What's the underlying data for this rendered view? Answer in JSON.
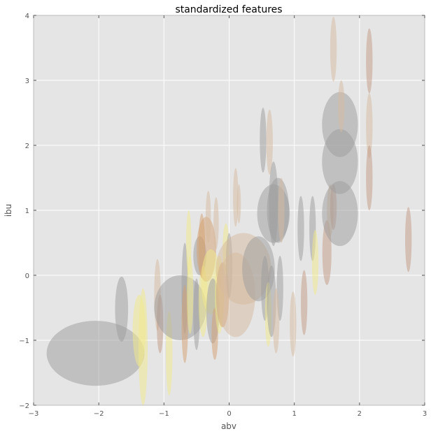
{
  "chart_data": {
    "type": "scatter",
    "title": "standardized features",
    "xlabel": "abv",
    "ylabel": "ibu",
    "xlim": [
      -3,
      3
    ],
    "ylim": [
      -2,
      4
    ],
    "x_ticks": [
      "−3",
      "−2",
      "−1",
      "0",
      "1",
      "2",
      "3"
    ],
    "y_ticks": [
      "−2",
      "−1",
      "0",
      "1",
      "2",
      "3",
      "4"
    ],
    "grid": true,
    "background": "#e5e5e5",
    "ellipse_alpha": 0.5,
    "colors": {
      "gray": "#9c9c9c",
      "tan": "#d6b99e",
      "yellow": "#f1e98a",
      "brown": "#c49a85",
      "orange": "#d4a070"
    },
    "ellipses": [
      {
        "x": -2.05,
        "y": -1.2,
        "w": 1.5,
        "h": 1.0,
        "color": "gray"
      },
      {
        "x": -1.65,
        "y": -0.52,
        "w": 0.2,
        "h": 1.0,
        "color": "gray"
      },
      {
        "x": -1.38,
        "y": -0.85,
        "w": 0.2,
        "h": 1.1,
        "color": "yellow"
      },
      {
        "x": -1.32,
        "y": -1.1,
        "w": 0.14,
        "h": 1.8,
        "color": "yellow"
      },
      {
        "x": -1.1,
        "y": -0.3,
        "w": 0.1,
        "h": 1.1,
        "color": "tan"
      },
      {
        "x": -1.06,
        "y": -0.75,
        "w": 0.1,
        "h": 0.9,
        "color": "brown"
      },
      {
        "x": -0.92,
        "y": -1.2,
        "w": 0.1,
        "h": 1.3,
        "color": "yellow"
      },
      {
        "x": -0.75,
        "y": -0.5,
        "w": 0.8,
        "h": 1.0,
        "color": "gray"
      },
      {
        "x": -0.68,
        "y": -0.2,
        "w": 0.1,
        "h": 1.4,
        "color": "gray"
      },
      {
        "x": -0.68,
        "y": -0.75,
        "w": 0.1,
        "h": 1.2,
        "color": "orange"
      },
      {
        "x": -0.6,
        "y": -0.3,
        "w": 0.1,
        "h": 1.2,
        "color": "yellow"
      },
      {
        "x": -0.62,
        "y": 0.5,
        "w": 0.08,
        "h": 1.0,
        "color": "yellow"
      },
      {
        "x": -0.5,
        "y": -0.6,
        "w": 0.1,
        "h": 1.1,
        "color": "gray"
      },
      {
        "x": -0.45,
        "y": 0.3,
        "w": 0.2,
        "h": 0.6,
        "color": "gray"
      },
      {
        "x": -0.42,
        "y": 0.45,
        "w": 0.1,
        "h": 1.0,
        "color": "orange"
      },
      {
        "x": -0.4,
        "y": -0.4,
        "w": 0.14,
        "h": 1.1,
        "color": "yellow"
      },
      {
        "x": -0.35,
        "y": 0.4,
        "w": 0.3,
        "h": 1.0,
        "color": "orange"
      },
      {
        "x": -0.32,
        "y": 0.9,
        "w": 0.08,
        "h": 0.8,
        "color": "tan"
      },
      {
        "x": -0.28,
        "y": -0.1,
        "w": 0.3,
        "h": 1.0,
        "color": "yellow"
      },
      {
        "x": -0.25,
        "y": -0.55,
        "w": 0.2,
        "h": 1.0,
        "color": "gray"
      },
      {
        "x": -0.22,
        "y": -0.9,
        "w": 0.1,
        "h": 0.8,
        "color": "orange"
      },
      {
        "x": -0.2,
        "y": 0.8,
        "w": 0.08,
        "h": 0.8,
        "color": "tan"
      },
      {
        "x": -0.15,
        "y": -0.3,
        "w": 0.14,
        "h": 1.2,
        "color": "yellow"
      },
      {
        "x": -0.1,
        "y": -0.3,
        "w": 0.2,
        "h": 1.0,
        "color": "orange"
      },
      {
        "x": -0.05,
        "y": 0.4,
        "w": 0.1,
        "h": 0.8,
        "color": "yellow"
      },
      {
        "x": 0.0,
        "y": 0.15,
        "w": 0.1,
        "h": 1.0,
        "color": "gray"
      },
      {
        "x": 0.1,
        "y": 1.2,
        "w": 0.08,
        "h": 0.9,
        "color": "tan"
      },
      {
        "x": 0.15,
        "y": 1.1,
        "w": 0.06,
        "h": 0.6,
        "color": "tan"
      },
      {
        "x": 0.1,
        "y": -0.3,
        "w": 0.6,
        "h": 1.3,
        "color": "tan"
      },
      {
        "x": 0.22,
        "y": 0.1,
        "w": 0.85,
        "h": 1.1,
        "color": "tan"
      },
      {
        "x": 0.45,
        "y": 0.1,
        "w": 0.5,
        "h": 1.0,
        "color": "gray"
      },
      {
        "x": 0.52,
        "y": 2.08,
        "w": 0.1,
        "h": 1.0,
        "color": "gray"
      },
      {
        "x": 0.55,
        "y": -0.2,
        "w": 0.12,
        "h": 1.0,
        "color": "gray"
      },
      {
        "x": 0.62,
        "y": 2.05,
        "w": 0.1,
        "h": 1.0,
        "color": "tan"
      },
      {
        "x": 0.6,
        "y": -0.6,
        "w": 0.1,
        "h": 1.0,
        "color": "yellow"
      },
      {
        "x": 0.65,
        "y": -0.4,
        "w": 0.14,
        "h": 1.1,
        "color": "gray"
      },
      {
        "x": 0.68,
        "y": 0.95,
        "w": 0.5,
        "h": 0.9,
        "color": "gray"
      },
      {
        "x": 0.68,
        "y": 1.1,
        "w": 0.14,
        "h": 1.3,
        "color": "gray"
      },
      {
        "x": 0.75,
        "y": 1.0,
        "w": 0.34,
        "h": 1.0,
        "color": "gray"
      },
      {
        "x": 0.8,
        "y": 1.0,
        "w": 0.1,
        "h": 1.0,
        "color": "tan"
      },
      {
        "x": 0.78,
        "y": -0.2,
        "w": 0.1,
        "h": 1.0,
        "color": "gray"
      },
      {
        "x": 0.72,
        "y": -0.7,
        "w": 0.1,
        "h": 1.0,
        "color": "tan"
      },
      {
        "x": 0.98,
        "y": -0.75,
        "w": 0.1,
        "h": 1.0,
        "color": "tan"
      },
      {
        "x": 1.1,
        "y": 0.72,
        "w": 0.1,
        "h": 1.0,
        "color": "gray"
      },
      {
        "x": 1.15,
        "y": -0.42,
        "w": 0.1,
        "h": 1.0,
        "color": "brown"
      },
      {
        "x": 1.28,
        "y": 0.72,
        "w": 0.1,
        "h": 1.0,
        "color": "gray"
      },
      {
        "x": 1.32,
        "y": 0.2,
        "w": 0.1,
        "h": 1.0,
        "color": "yellow"
      },
      {
        "x": 1.5,
        "y": 0.35,
        "w": 0.14,
        "h": 1.0,
        "color": "brown"
      },
      {
        "x": 1.55,
        "y": 1.0,
        "w": 0.1,
        "h": 0.8,
        "color": "tan"
      },
      {
        "x": 1.6,
        "y": 1.05,
        "w": 0.1,
        "h": 0.7,
        "color": "brown"
      },
      {
        "x": 1.6,
        "y": 3.48,
        "w": 0.1,
        "h": 1.0,
        "color": "tan"
      },
      {
        "x": 1.7,
        "y": 2.32,
        "w": 0.55,
        "h": 1.0,
        "color": "gray"
      },
      {
        "x": 1.7,
        "y": 1.75,
        "w": 0.55,
        "h": 1.0,
        "color": "gray"
      },
      {
        "x": 1.7,
        "y": 0.95,
        "w": 0.55,
        "h": 1.0,
        "color": "gray"
      },
      {
        "x": 1.72,
        "y": 2.6,
        "w": 0.1,
        "h": 0.8,
        "color": "tan"
      },
      {
        "x": 2.15,
        "y": 3.3,
        "w": 0.1,
        "h": 1.0,
        "color": "brown"
      },
      {
        "x": 2.15,
        "y": 2.3,
        "w": 0.1,
        "h": 1.0,
        "color": "tan"
      },
      {
        "x": 2.15,
        "y": 1.5,
        "w": 0.1,
        "h": 1.0,
        "color": "brown"
      },
      {
        "x": 2.75,
        "y": 0.55,
        "w": 0.1,
        "h": 1.0,
        "color": "brown"
      }
    ]
  }
}
